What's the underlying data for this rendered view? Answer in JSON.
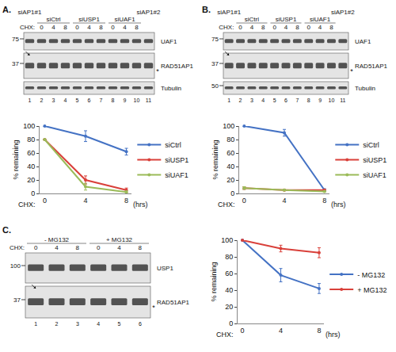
{
  "chart_data": [
    {
      "type": "line",
      "panel": "A.",
      "ylabel": "% remaining",
      "annotations": [
        "CHX:",
        "(hrs)"
      ],
      "x": [
        0,
        4,
        8
      ],
      "xlim": [
        -0.5,
        8.5
      ],
      "xticks": [
        0,
        4,
        8
      ],
      "ylim": [
        0,
        100
      ],
      "yticks": [
        0,
        20,
        40,
        60,
        80,
        100
      ],
      "grid": false,
      "legend": "right",
      "series": [
        {
          "name": "siCtrl",
          "color": "#4472c4",
          "values": [
            100,
            85,
            62
          ],
          "errors": [
            0,
            8,
            5
          ]
        },
        {
          "name": "siUSP1",
          "color": "#d9403a",
          "values": [
            80,
            20,
            5
          ],
          "errors": [
            0,
            6,
            3
          ]
        },
        {
          "name": "siUAF1",
          "color": "#9bbb59",
          "values": [
            80,
            10,
            2
          ],
          "errors": [
            0,
            5,
            2
          ]
        }
      ]
    },
    {
      "type": "line",
      "panel": "B.",
      "ylabel": "% remaining",
      "annotations": [
        "CHX:",
        "(hrs)"
      ],
      "x": [
        0,
        4,
        8
      ],
      "xlim": [
        -0.5,
        8.5
      ],
      "xticks": [
        0,
        4,
        8
      ],
      "ylim": [
        0,
        100
      ],
      "yticks": [
        0,
        20,
        40,
        60,
        80,
        100
      ],
      "grid": false,
      "legend": "right",
      "series": [
        {
          "name": "siCtrl",
          "color": "#4472c4",
          "values": [
            100,
            90,
            5
          ],
          "errors": [
            0,
            5,
            2
          ]
        },
        {
          "name": "siUSP1",
          "color": "#d9403a",
          "values": [
            8,
            5,
            5
          ],
          "errors": [
            2,
            1,
            1
          ]
        },
        {
          "name": "siUAF1",
          "color": "#9bbb59",
          "values": [
            8,
            5,
            3
          ],
          "errors": [
            2,
            1,
            1
          ]
        }
      ]
    },
    {
      "type": "line",
      "panel": "C.",
      "ylabel": "% remaining",
      "annotations": [
        "CHX:",
        "(hrs)"
      ],
      "x": [
        0,
        4,
        8
      ],
      "xlim": [
        -0.5,
        8.5
      ],
      "xticks": [
        0,
        4,
        8
      ],
      "ylim": [
        0,
        100
      ],
      "yticks": [
        0,
        20,
        40,
        60,
        80,
        100
      ],
      "grid": false,
      "legend": "right",
      "series": [
        {
          "name": "- MG132",
          "color": "#4472c4",
          "values": [
            100,
            58,
            42
          ],
          "errors": [
            0,
            8,
            6
          ]
        },
        {
          "name": "+ MG132",
          "color": "#d9403a",
          "values": [
            100,
            90,
            85
          ],
          "errors": [
            0,
            4,
            6
          ]
        }
      ]
    }
  ],
  "blots": [
    {
      "panel": "A.",
      "chx_label": "CHX:",
      "lane_groups": [
        {
          "label": "siAP1#1",
          "lanes": 1
        },
        {
          "label": "siCtrl",
          "lanes": 3,
          "chx": [
            0,
            4,
            8
          ]
        },
        {
          "label": "siUSP1",
          "lanes": 3,
          "chx": [
            0,
            4,
            8
          ]
        },
        {
          "label": "siUAF1",
          "lanes": 3,
          "chx": [
            0,
            4,
            8
          ]
        },
        {
          "label": "siAP1#2",
          "lanes": 1
        }
      ],
      "rows": [
        "UAF1",
        "RAD51AP1",
        "Tubulin"
      ],
      "markers": [
        {
          "label": "75",
          "row": 0
        },
        {
          "label": "37",
          "row": 1
        }
      ],
      "asterisk": "*",
      "lane_numbers": [
        "1",
        "2",
        "3",
        "4",
        "5",
        "6",
        "7",
        "8",
        "9",
        "10",
        "11"
      ]
    },
    {
      "panel": "B.",
      "chx_label": "CHX:",
      "lane_groups": [
        {
          "label": "siAP1#1",
          "lanes": 1
        },
        {
          "label": "siCtrl",
          "lanes": 3,
          "chx": [
            0,
            4,
            8
          ]
        },
        {
          "label": "siUSP1",
          "lanes": 3,
          "chx": [
            0,
            4,
            8
          ]
        },
        {
          "label": "siUAF1",
          "lanes": 3,
          "chx": [
            0,
            4,
            8
          ]
        },
        {
          "label": "siAP1#2",
          "lanes": 1
        }
      ],
      "rows": [
        "UAF1",
        "RAD51AP1",
        "Tubulin"
      ],
      "markers": [
        {
          "label": "75",
          "row": 0
        },
        {
          "label": "37",
          "row": 1
        },
        {
          "label": "50",
          "row": 2
        }
      ],
      "asterisk": "*",
      "lane_numbers": [
        "1",
        "2",
        "3",
        "4",
        "5",
        "6",
        "7",
        "8",
        "9",
        "10",
        "11"
      ]
    },
    {
      "panel": "C.",
      "chx_label": "CHX:",
      "lane_groups": [
        {
          "label": "- MG132",
          "lanes": 3,
          "chx": [
            0,
            4,
            8
          ]
        },
        {
          "label": "+ MG132",
          "lanes": 3,
          "chx": [
            0,
            4,
            8
          ]
        }
      ],
      "rows": [
        "USP1",
        "RAD51AP1"
      ],
      "markers": [
        {
          "label": "100",
          "row": 0
        },
        {
          "label": "37",
          "row": 1
        }
      ],
      "asterisk": "*",
      "lane_numbers": [
        "1",
        "2",
        "3",
        "4",
        "5",
        "6"
      ]
    }
  ]
}
